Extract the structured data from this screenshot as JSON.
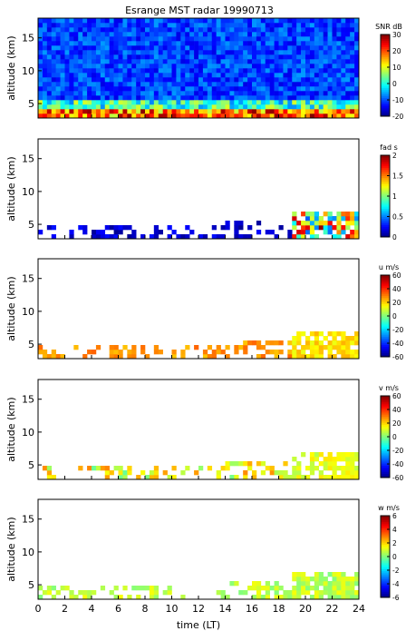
{
  "title": "Esrange MST radar 19990713",
  "xlabel": "time (LT)",
  "chart_data": {
    "type": "heatmap",
    "title": "Esrange MST radar 19990713",
    "xlabel": "time (LT)",
    "xlim": [
      0,
      24
    ],
    "x_ticks": [
      0,
      2,
      4,
      6,
      8,
      10,
      12,
      14,
      16,
      18,
      20,
      22,
      24
    ],
    "panels": [
      {
        "quantity": "SNR",
        "ylabel": "altitude (km)",
        "colorbar_label": "SNR dB",
        "ylim": [
          2.8,
          18
        ],
        "y_ticks": [
          5,
          10,
          15
        ],
        "clim": [
          -20,
          30
        ],
        "cbar_ticks": [
          -20,
          -10,
          0,
          10,
          20,
          30
        ],
        "coverage": "full"
      },
      {
        "quantity": "fading time",
        "ylabel": "altitude (km)",
        "colorbar_label": "fad s",
        "ylim": [
          2.8,
          18
        ],
        "y_ticks": [
          5,
          10,
          15
        ],
        "clim": [
          0,
          2
        ],
        "cbar_ticks": [
          0,
          0.5,
          1,
          1.5,
          2
        ],
        "cbar_tick_labels": [
          "0",
          "0.5",
          "1",
          "1.5",
          "2"
        ],
        "coverage": "low"
      },
      {
        "quantity": "zonal wind",
        "ylabel": "altitude (km)",
        "colorbar_label": "u m/s",
        "ylim": [
          2.8,
          18
        ],
        "y_ticks": [
          5,
          10,
          15
        ],
        "clim": [
          -60,
          60
        ],
        "cbar_ticks": [
          -60,
          -40,
          -20,
          0,
          20,
          40,
          60
        ],
        "coverage": "low"
      },
      {
        "quantity": "meridional wind",
        "ylabel": "altitude (km)",
        "colorbar_label": "v m/s",
        "ylim": [
          2.8,
          18
        ],
        "y_ticks": [
          5,
          10,
          15
        ],
        "clim": [
          -60,
          60
        ],
        "cbar_ticks": [
          -60,
          -40,
          -20,
          0,
          20,
          40,
          60
        ],
        "coverage": "low"
      },
      {
        "quantity": "vertical wind",
        "ylabel": "altitude (km)",
        "colorbar_label": "w m/s",
        "ylim": [
          2.8,
          18
        ],
        "y_ticks": [
          5,
          10,
          15
        ],
        "clim": [
          -6,
          6
        ],
        "cbar_ticks": [
          -6,
          -4,
          -2,
          0,
          2,
          4,
          6
        ],
        "coverage": "low"
      }
    ]
  }
}
